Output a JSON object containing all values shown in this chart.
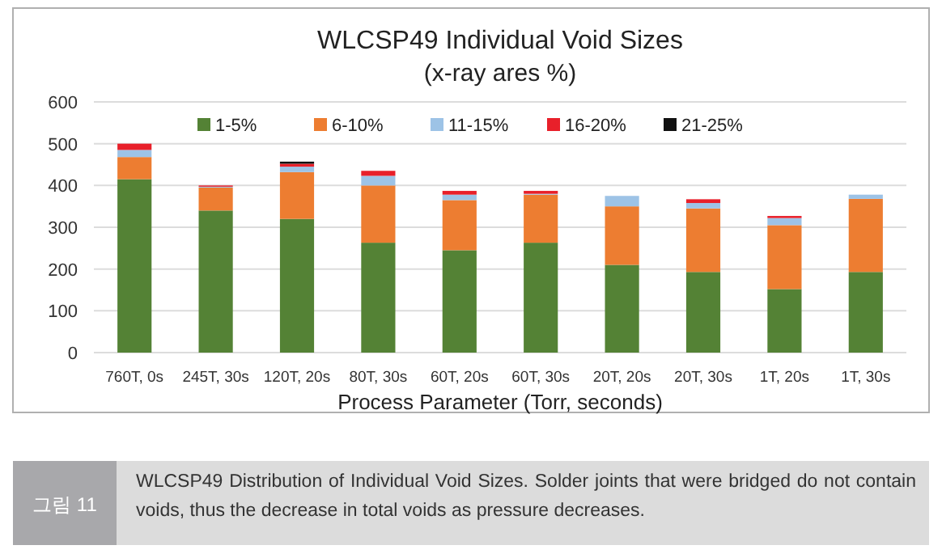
{
  "chart_data": {
    "type": "bar",
    "title": "WLCSP49 Individual Void Sizes",
    "subtitle": "(x-ray ares %)",
    "xlabel": "Process Parameter (Torr, seconds)",
    "categories": [
      "760T, 0s",
      "245T, 30s",
      "120T, 20s",
      "80T, 30s",
      "60T, 20s",
      "60T, 30s",
      "20T, 20s",
      "20T, 30s",
      "1T, 20s",
      "1T, 30s"
    ],
    "stacked": true,
    "series": [
      {
        "name": "1-5%",
        "color": "#548235",
        "values": [
          415,
          340,
          320,
          263,
          245,
          263,
          210,
          193,
          152,
          193
        ]
      },
      {
        "name": "6-10%",
        "color": "#ed7d31",
        "values": [
          53,
          55,
          112,
          137,
          120,
          115,
          140,
          152,
          153,
          175
        ]
      },
      {
        "name": "11-15%",
        "color": "#9dc3e6",
        "values": [
          17,
          2,
          13,
          23,
          13,
          2,
          25,
          13,
          17,
          10
        ]
      },
      {
        "name": "16-20%",
        "color": "#e8202a",
        "values": [
          15,
          3,
          7,
          12,
          9,
          7,
          0,
          9,
          5,
          0
        ]
      },
      {
        "name": "21-25%",
        "color": "#111111",
        "values": [
          0,
          0,
          5,
          0,
          0,
          0,
          0,
          0,
          0,
          0
        ]
      }
    ],
    "ylim": [
      0,
      600
    ],
    "yticks": [
      0,
      100,
      200,
      300,
      400,
      500,
      600
    ],
    "grid": "y",
    "legend": "top",
    "annotations": [
      "그림 11",
      "WLCSP49 Distribution of Individual Void Sizes. Solder joints that were bridged do not contain voids, thus the decrease in total voids as pressure decreases."
    ]
  }
}
